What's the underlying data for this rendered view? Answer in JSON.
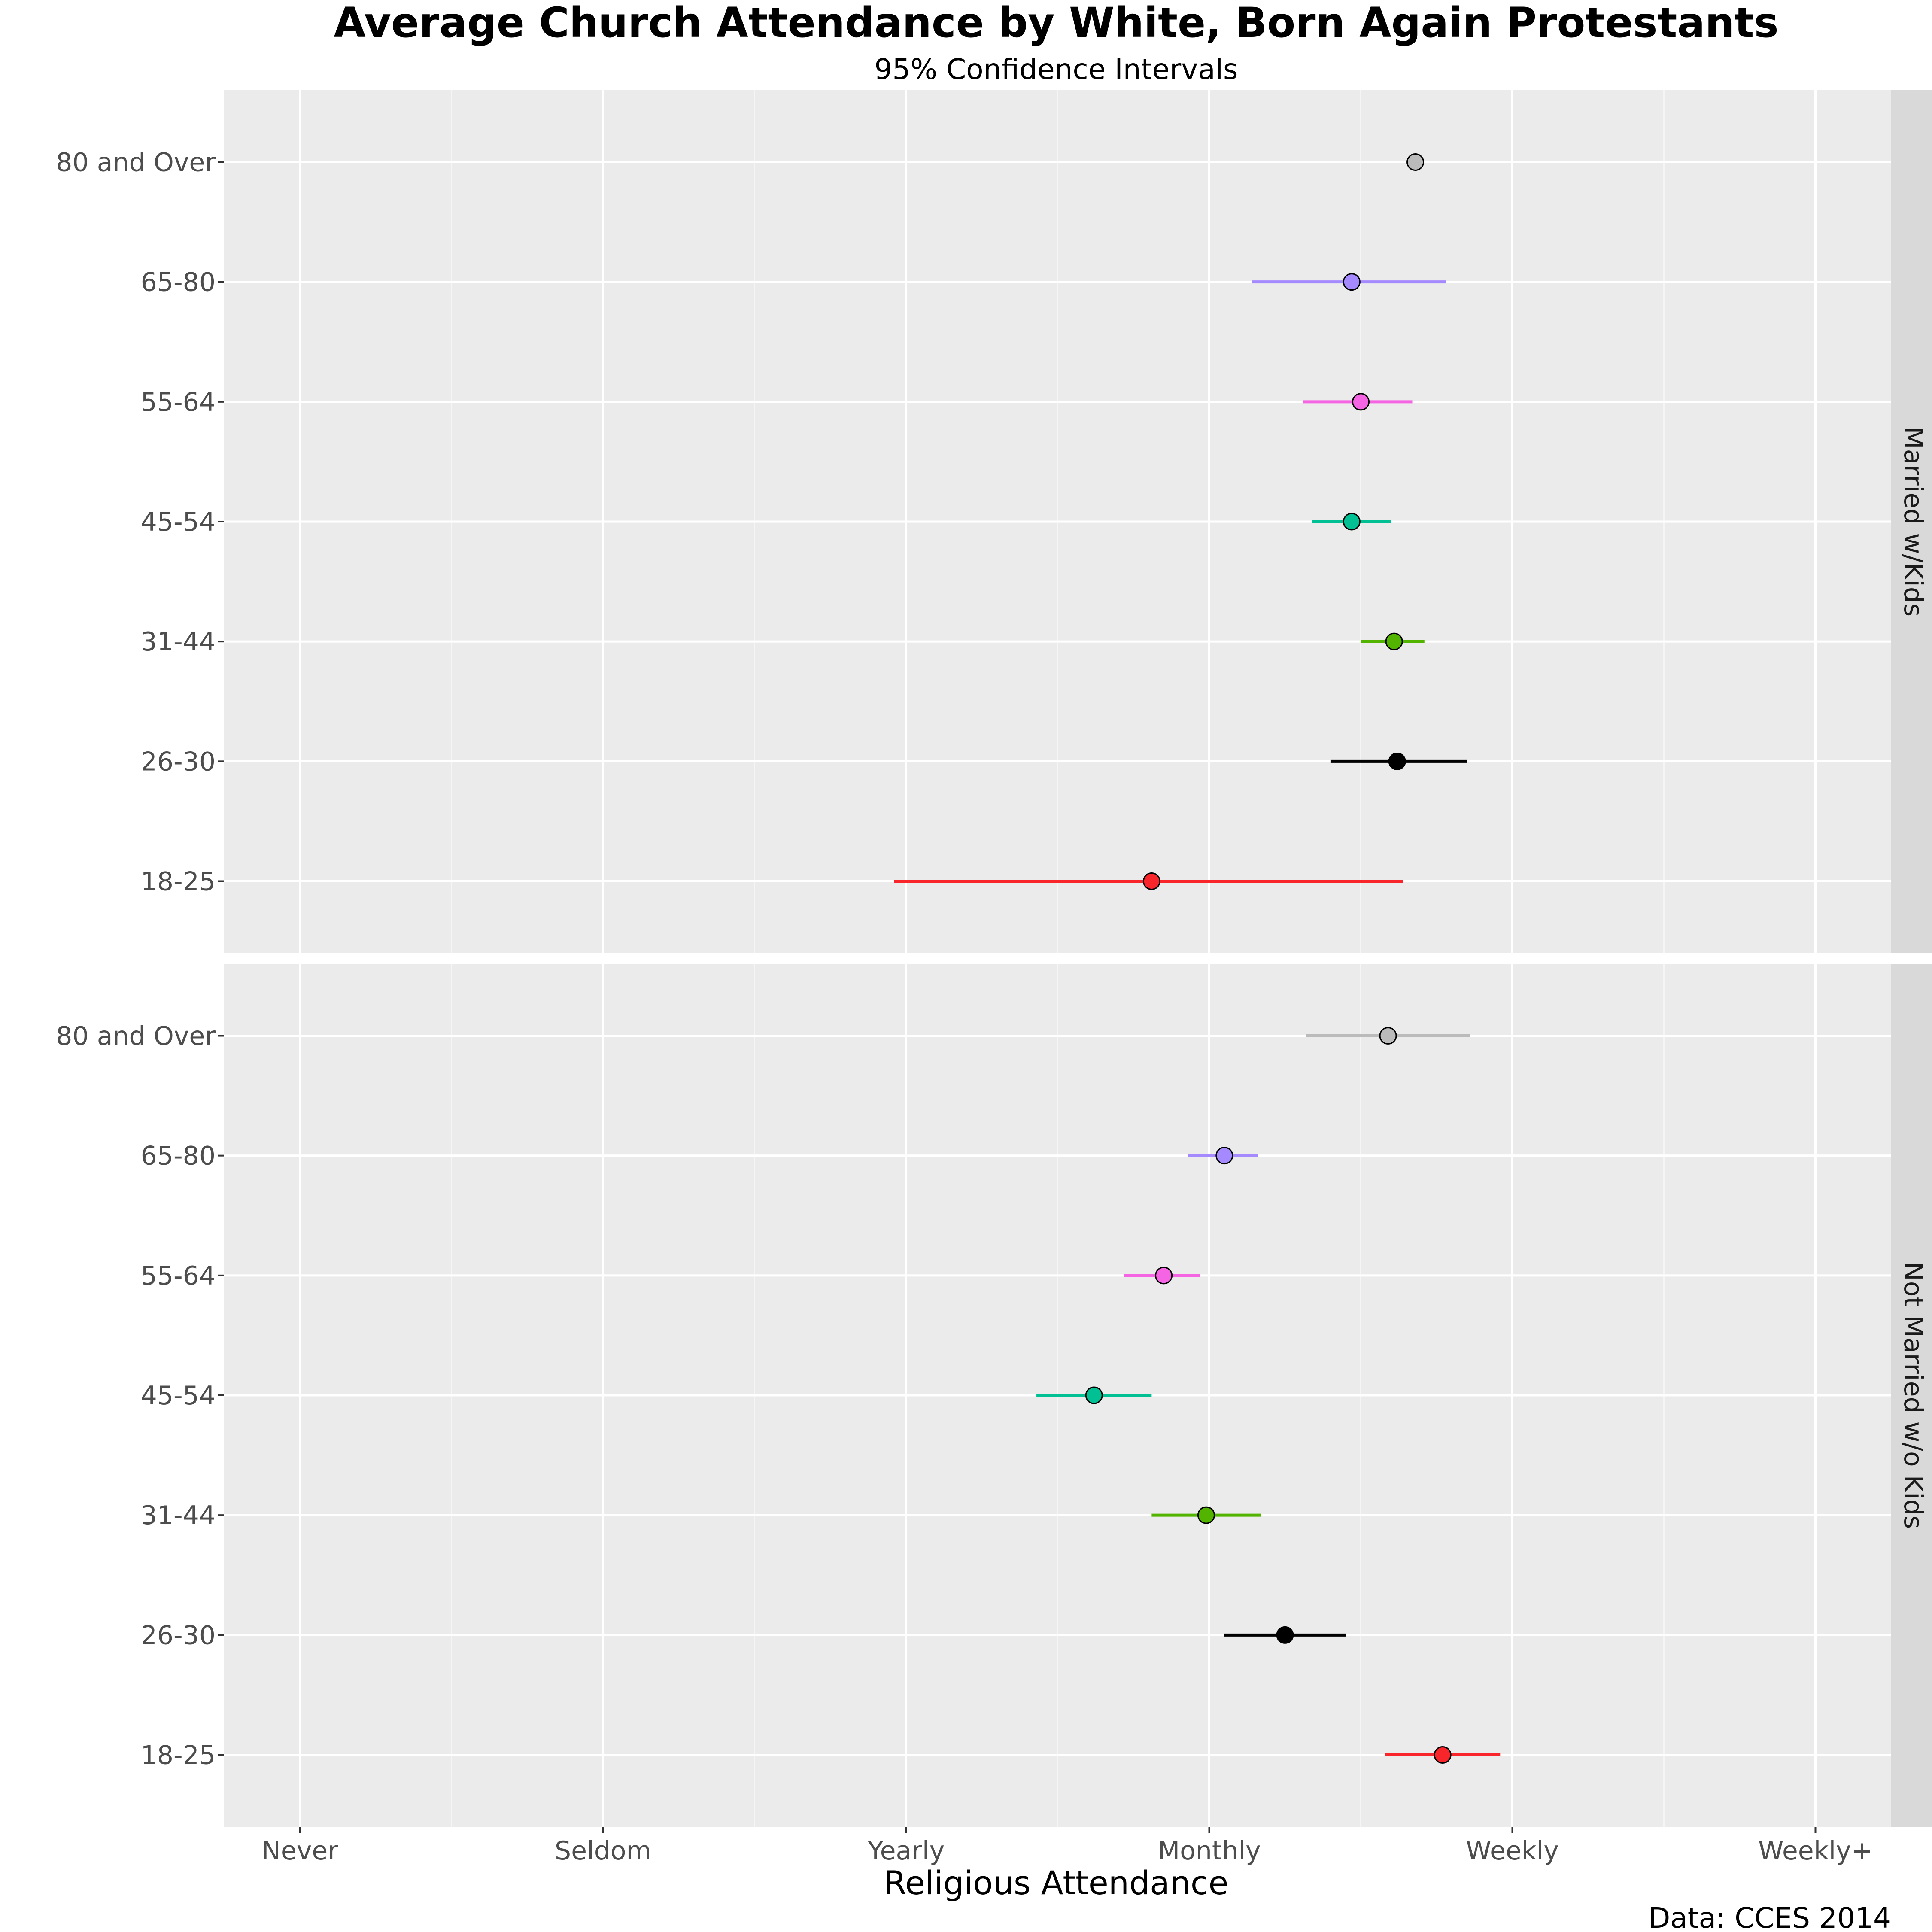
{
  "chart_data": {
    "type": "scatter",
    "title": "Average Church Attendance by White, Born Again Protestants",
    "subtitle": "95% Confidence Intervals",
    "xlabel": "Religious Attendance",
    "ylabel": "",
    "caption": "Data: CCES 2014",
    "x_ticks": [
      "Never",
      "Seldom",
      "Yearly",
      "Monthly",
      "Weekly",
      "Weekly+"
    ],
    "xlim": [
      0.75,
      6.25
    ],
    "grid": true,
    "categories": [
      "18-25",
      "26-30",
      "31-44",
      "45-54",
      "55-64",
      "65-80",
      "80 and Over"
    ],
    "colors": {
      "18-25": "#F8262B",
      "26-30": "#000000",
      "31-44": "#53B400",
      "45-54": "#00C094",
      "55-64": "#F564E3",
      "65-80": "#A58AFF",
      "80 and Over": "#BBBBBB"
    },
    "panels": [
      {
        "label": "Married w/Kids",
        "points": [
          {
            "category": "18-25",
            "mean": 3.81,
            "low": 2.96,
            "high": 4.64
          },
          {
            "category": "26-30",
            "mean": 4.62,
            "low": 4.4,
            "high": 4.85
          },
          {
            "category": "31-44",
            "mean": 4.61,
            "low": 4.5,
            "high": 4.71
          },
          {
            "category": "45-54",
            "mean": 4.47,
            "low": 4.34,
            "high": 4.6
          },
          {
            "category": "55-64",
            "mean": 4.5,
            "low": 4.31,
            "high": 4.67
          },
          {
            "category": "65-80",
            "mean": 4.47,
            "low": 4.14,
            "high": 4.78
          },
          {
            "category": "80 and Over",
            "mean": 4.68,
            "low": null,
            "high": null
          }
        ]
      },
      {
        "label": "Not Married w/o Kids",
        "points": [
          {
            "category": "18-25",
            "mean": 4.77,
            "low": 4.58,
            "high": 4.96
          },
          {
            "category": "26-30",
            "mean": 4.25,
            "low": 4.05,
            "high": 4.45
          },
          {
            "category": "31-44",
            "mean": 3.99,
            "low": 3.81,
            "high": 4.17
          },
          {
            "category": "45-54",
            "mean": 3.62,
            "low": 3.43,
            "high": 3.81
          },
          {
            "category": "55-64",
            "mean": 3.85,
            "low": 3.72,
            "high": 3.97
          },
          {
            "category": "65-80",
            "mean": 4.05,
            "low": 3.93,
            "high": 4.16
          },
          {
            "category": "80 and Over",
            "mean": 4.59,
            "low": 4.32,
            "high": 4.86
          }
        ]
      }
    ]
  }
}
